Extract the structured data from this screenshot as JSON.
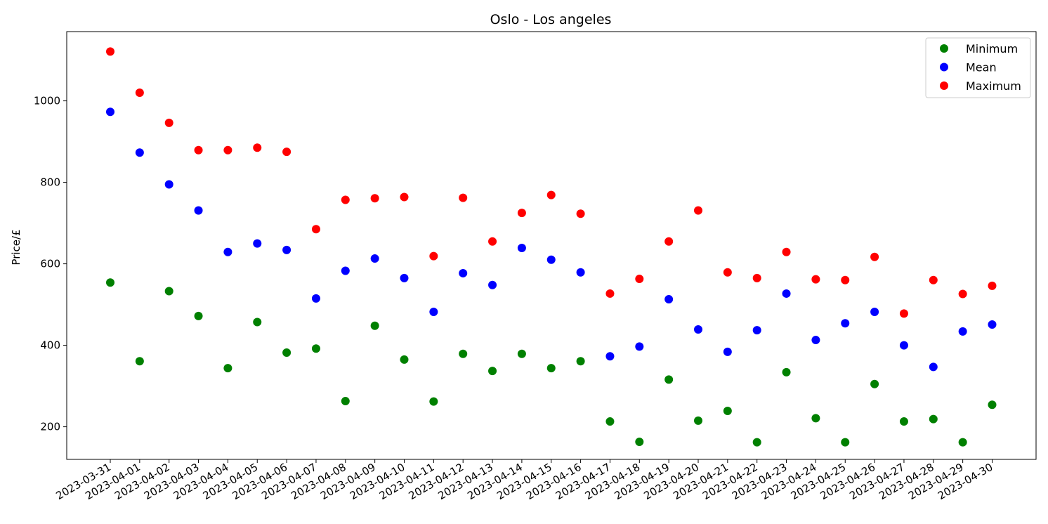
{
  "chart_data": {
    "type": "scatter",
    "title": "Oslo - Los angeles",
    "xlabel": "",
    "ylabel": "Price/£",
    "ylim": [
      120,
      1170
    ],
    "yticks": [
      200,
      400,
      600,
      800,
      1000
    ],
    "x": [
      "2023-03-31",
      "2023-04-01",
      "2023-04-02",
      "2023-04-03",
      "2023-04-04",
      "2023-04-05",
      "2023-04-06",
      "2023-04-07",
      "2023-04-08",
      "2023-04-09",
      "2023-04-10",
      "2023-04-11",
      "2023-04-12",
      "2023-04-13",
      "2023-04-14",
      "2023-04-15",
      "2023-04-16",
      "2023-04-17",
      "2023-04-18",
      "2023-04-19",
      "2023-04-20",
      "2023-04-21",
      "2023-04-22",
      "2023-04-23",
      "2023-04-24",
      "2023-04-25",
      "2023-04-26",
      "2023-04-27",
      "2023-04-28",
      "2023-04-29",
      "2023-04-30"
    ],
    "series": [
      {
        "name": "Minimum",
        "color": "#008000",
        "values": [
          554,
          361,
          533,
          472,
          344,
          457,
          382,
          392,
          263,
          448,
          365,
          262,
          379,
          337,
          379,
          344,
          361,
          213,
          163,
          316,
          215,
          239,
          162,
          334,
          221,
          162,
          305,
          213,
          219,
          162,
          254
        ]
      },
      {
        "name": "Mean",
        "color": "#0000ff",
        "values": [
          973,
          873,
          795,
          731,
          629,
          650,
          634,
          515,
          583,
          613,
          565,
          482,
          577,
          548,
          639,
          610,
          579,
          373,
          397,
          513,
          439,
          384,
          437,
          527,
          413,
          454,
          482,
          400,
          347,
          434,
          451
        ]
      },
      {
        "name": "Maximum",
        "color": "#ff0000",
        "values": [
          1121,
          1020,
          946,
          879,
          879,
          885,
          875,
          685,
          757,
          761,
          764,
          619,
          762,
          655,
          725,
          769,
          723,
          527,
          563,
          655,
          731,
          579,
          565,
          629,
          562,
          560,
          617,
          478,
          560,
          526,
          546
        ]
      }
    ],
    "grid": false,
    "legend": "top-right"
  }
}
